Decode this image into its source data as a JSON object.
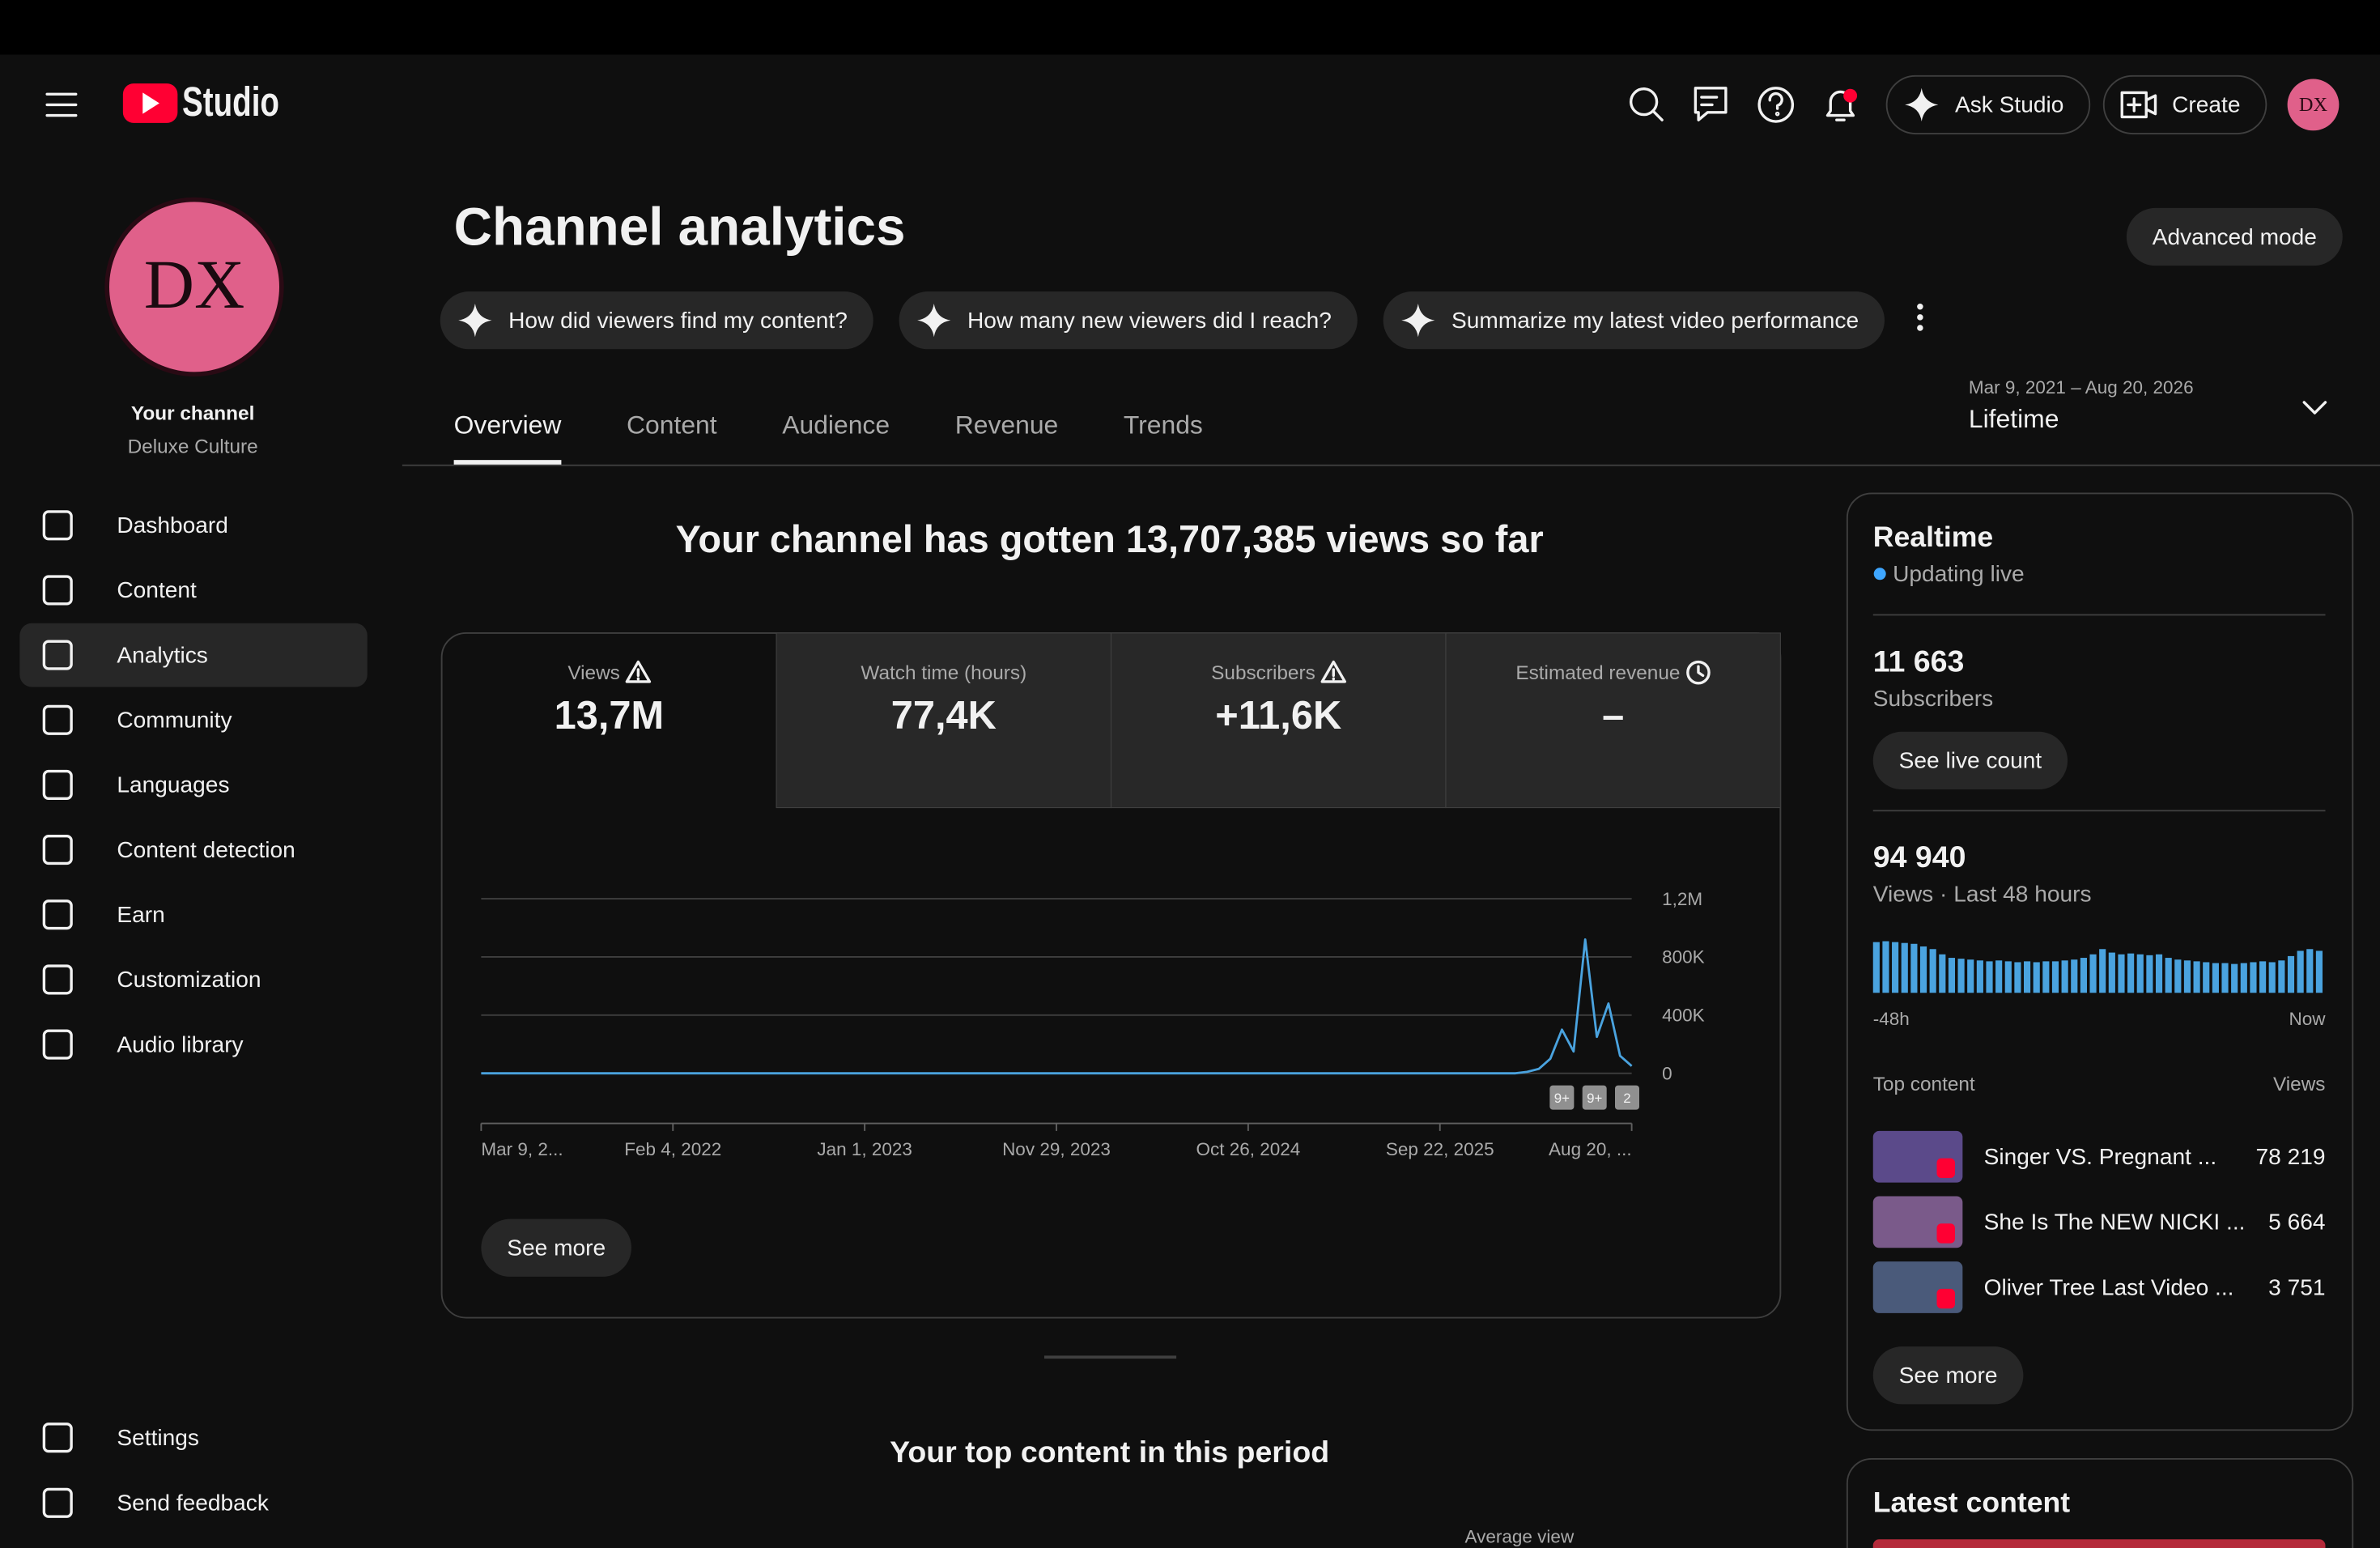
{
  "header": {
    "logo_text": "Studio",
    "ask_studio": "Ask Studio",
    "create": "Create",
    "avatar_text": "DX"
  },
  "sidebar": {
    "avatar_text": "DX",
    "channel_label": "Your channel",
    "channel_name": "Deluxe Culture",
    "active_nav": 2,
    "nav": [
      "Dashboard",
      "Content",
      "Analytics",
      "Community",
      "Languages",
      "Content detection",
      "Earn",
      "Customization",
      "Audio library"
    ],
    "footer_nav": [
      "Settings",
      "Send feedback"
    ]
  },
  "page": {
    "title": "Channel analytics",
    "advanced_mode": "Advanced mode",
    "prompts": [
      "How did viewers find my content?",
      "How many new viewers did I reach?",
      "Summarize my latest video performance"
    ],
    "tabs": [
      "Overview",
      "Content",
      "Audience",
      "Revenue",
      "Trends"
    ],
    "active_tab": 0,
    "date_range": "Mar 9, 2021 – Aug 20, 2026",
    "period": "Lifetime",
    "headline": "Your channel has gotten 13,707,385 views so far",
    "selected_metric": 0,
    "metrics": [
      {
        "label": "Views",
        "value": "13,7M",
        "icon": "warning"
      },
      {
        "label": "Watch time (hours)",
        "value": "77,4K"
      },
      {
        "label": "Subscribers",
        "value": "+11,6K",
        "icon": "warning"
      },
      {
        "label": "Estimated revenue",
        "value": "–",
        "icon": "clock"
      }
    ],
    "see_more": "See more",
    "top_content_title": "Your top content in this period",
    "average_view": "Average view"
  },
  "chart_data": {
    "type": "line",
    "color": "#4aa3df",
    "ylim": [
      0,
      1200000
    ],
    "yticks": [
      0,
      {
        "value": 400000,
        "label": "400K"
      },
      {
        "value": 800000,
        "label": "800K"
      },
      {
        "value": 1200000,
        "label": "1,2M"
      }
    ],
    "grid": true,
    "x_labels": [
      "Mar 9, 2...",
      "Feb 4, 2022",
      "Jan 1, 2023",
      "Nov 29, 2023",
      "Oct 26, 2024",
      "Sep 22, 2025",
      "Aug 20, ..."
    ],
    "markers": [
      "9+",
      "9+",
      "2"
    ],
    "values": [
      0,
      0,
      0,
      0,
      0,
      0,
      0,
      0,
      0,
      0,
      0,
      0,
      0,
      0,
      0,
      0,
      0,
      0,
      0,
      0,
      0,
      0,
      0,
      0,
      0,
      0,
      0,
      0,
      0,
      0,
      0,
      0,
      0,
      0,
      0,
      0,
      0,
      0,
      0,
      0,
      0,
      0,
      0,
      0,
      0,
      0,
      0,
      0,
      0,
      0,
      0,
      0,
      0,
      0,
      0,
      0,
      0,
      0,
      0,
      0,
      0,
      0,
      0,
      0,
      0,
      0,
      0,
      0,
      0,
      0,
      0,
      0,
      0,
      0,
      0,
      0,
      0,
      0,
      0,
      0,
      0,
      0,
      0,
      0,
      0,
      0,
      0,
      0,
      0,
      0,
      10000,
      30000,
      100000,
      300000,
      150000,
      920000,
      250000,
      480000,
      120000,
      50000
    ]
  },
  "realtime": {
    "title": "Realtime",
    "status": "Updating live",
    "subscribers": "11 663",
    "subscribers_label": "Subscribers",
    "live_count_button": "See live count",
    "views": "94 940",
    "views_label": "Views · Last 48 hours",
    "bar_color": "#4aa3df",
    "bars": [
      2900,
      2950,
      2900,
      2850,
      2800,
      2650,
      2500,
      2200,
      2000,
      1950,
      1900,
      1850,
      1800,
      1850,
      1800,
      1750,
      1800,
      1750,
      1800,
      1800,
      1850,
      1900,
      2000,
      2200,
      2500,
      2300,
      2200,
      2250,
      2200,
      2150,
      2200,
      2000,
      1900,
      1850,
      1800,
      1750,
      1700,
      1700,
      1650,
      1700,
      1750,
      1800,
      1750,
      1850,
      2100,
      2400,
      2500,
      2400
    ],
    "start_label": "-48h",
    "end_label": "Now",
    "top_content_label": "Top content",
    "views_column": "Views",
    "top_content": [
      {
        "title": "Singer VS. Pregnant ...",
        "views": "78 219"
      },
      {
        "title": "She Is The NEW NICKI ...",
        "views": "5 664"
      },
      {
        "title": "Oliver Tree Last Video ...",
        "views": "3 751"
      }
    ],
    "see_more": "See more"
  },
  "latest_content": {
    "title": "Latest content"
  }
}
